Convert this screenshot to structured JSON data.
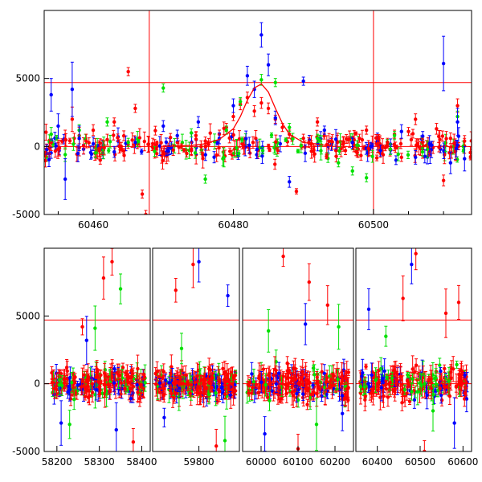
{
  "chart_data": [
    {
      "type": "scatter",
      "panel": "top",
      "title": "",
      "xlabel": "",
      "ylabel": "",
      "xlim": [
        60453,
        60514
      ],
      "ylim": [
        -5000,
        10000
      ],
      "xticks": [
        60460,
        60480,
        60500
      ],
      "yticks": [
        -5000,
        0,
        5000
      ],
      "hlines": [
        0,
        4700
      ],
      "vlines": [
        60468,
        60500
      ],
      "colors": {
        "red": "#ff0000",
        "green": "#00e000",
        "blue": "#0000ff"
      },
      "model_curve": {
        "color": "#ff0000",
        "x": [
          60470,
          60474,
          60476,
          60478,
          60480,
          60481,
          60482,
          60483,
          60484,
          60485,
          60486,
          60487,
          60488,
          60490,
          60494
        ],
        "y": [
          0,
          80,
          200,
          520,
          1300,
          2200,
          3400,
          4300,
          4600,
          4000,
          2800,
          1700,
          900,
          300,
          30
        ]
      },
      "series": [
        {
          "color": "red",
          "points": [
            [
              60454,
              300,
              600
            ],
            [
              60455,
              -200,
              500
            ],
            [
              60456,
              500,
              700
            ],
            [
              60457,
              2000,
              900
            ],
            [
              60458,
              800,
              600
            ],
            [
              60459,
              400,
              500
            ],
            [
              60460,
              1200,
              400
            ],
            [
              60461,
              -1000,
              300
            ],
            [
              60462,
              500,
              400
            ],
            [
              60463,
              1800,
              300
            ],
            [
              60464,
              0,
              300
            ],
            [
              60465,
              5500,
              300
            ],
            [
              60466,
              2800,
              300
            ],
            [
              60467,
              -3500,
              300
            ],
            [
              60467.5,
              -5000,
              300
            ],
            [
              60468.5,
              200,
              400
            ],
            [
              60470,
              -400,
              300
            ],
            [
              60472,
              300,
              300
            ],
            [
              60474,
              -300,
              300
            ],
            [
              60476,
              400,
              300
            ],
            [
              60478,
              900,
              300
            ],
            [
              60479,
              1400,
              300
            ],
            [
              60480,
              2200,
              300
            ],
            [
              60481,
              3100,
              400
            ],
            [
              60482,
              3600,
              400
            ],
            [
              60483,
              2600,
              400
            ],
            [
              60484,
              3200,
              400
            ],
            [
              60485,
              2800,
              400
            ],
            [
              60486,
              2000,
              300
            ],
            [
              60487,
              1400,
              300
            ],
            [
              60488,
              900,
              300
            ],
            [
              60489,
              -3300,
              200
            ],
            [
              60490,
              600,
              300
            ],
            [
              60492,
              1800,
              300
            ],
            [
              60494,
              400,
              300
            ],
            [
              60496,
              -300,
              300
            ],
            [
              60498,
              600,
              300
            ],
            [
              60499,
              1200,
              300
            ],
            [
              60501,
              -500,
              300
            ],
            [
              60502,
              300,
              300
            ],
            [
              60503,
              900,
              300
            ],
            [
              60504,
              -800,
              300
            ],
            [
              60505,
              1100,
              300
            ],
            [
              60506,
              2000,
              400
            ],
            [
              60507,
              300,
              300
            ],
            [
              60508,
              -400,
              300
            ],
            [
              60509,
              1300,
              400
            ],
            [
              60510,
              -2500,
              400
            ],
            [
              60511,
              600,
              400
            ],
            [
              60512,
              3000,
              500
            ],
            [
              60513,
              400,
              400
            ]
          ]
        },
        {
          "color": "green",
          "points": [
            [
              60454,
              900,
              500
            ],
            [
              60456,
              -600,
              500
            ],
            [
              60458,
              1200,
              400
            ],
            [
              60462,
              1800,
              300
            ],
            [
              60465,
              300,
              300
            ],
            [
              60470,
              4300,
              300
            ],
            [
              60474,
              1000,
              300
            ],
            [
              60476,
              -2400,
              300
            ],
            [
              60479,
              1200,
              300
            ],
            [
              60481,
              3300,
              300
            ],
            [
              60484,
              4900,
              400
            ],
            [
              60486,
              4700,
              300
            ],
            [
              60488,
              1400,
              300
            ],
            [
              60492,
              600,
              300
            ],
            [
              60495,
              -1200,
              300
            ],
            [
              60497,
              -1800,
              300
            ],
            [
              60499,
              -2300,
              300
            ],
            [
              60503,
              800,
              300
            ],
            [
              60507,
              -400,
              300
            ],
            [
              60512,
              2200,
              400
            ]
          ]
        },
        {
          "color": "blue",
          "points": [
            [
              60454,
              3800,
              1200
            ],
            [
              60455,
              1500,
              900
            ],
            [
              60456,
              -2400,
              1500
            ],
            [
              60457,
              4200,
              2000
            ],
            [
              60458,
              600,
              900
            ],
            [
              60460,
              200,
              500
            ],
            [
              60463,
              -400,
              400
            ],
            [
              60466,
              300,
              400
            ],
            [
              60470,
              1500,
              400
            ],
            [
              60472,
              800,
              400
            ],
            [
              60475,
              1800,
              400
            ],
            [
              60478,
              600,
              400
            ],
            [
              60480,
              3000,
              500
            ],
            [
              60482,
              5200,
              700
            ],
            [
              60483,
              4200,
              600
            ],
            [
              60484,
              8200,
              900
            ],
            [
              60485,
              6000,
              800
            ],
            [
              60486,
              2100,
              500
            ],
            [
              60488,
              -2600,
              400
            ],
            [
              60490,
              4800,
              300
            ],
            [
              60493,
              1200,
              300
            ],
            [
              60497,
              300,
              300
            ],
            [
              60501,
              -300,
              400
            ],
            [
              60504,
              1100,
              500
            ],
            [
              60506,
              -800,
              500
            ],
            [
              60508,
              200,
              600
            ],
            [
              60510,
              6100,
              2000
            ],
            [
              60511,
              -1200,
              800
            ],
            [
              60512,
              1800,
              1000
            ],
            [
              60513,
              -900,
              900
            ]
          ]
        }
      ]
    },
    {
      "type": "scatter",
      "panel": "bottom",
      "title": "",
      "xlabel": "",
      "ylabel": "",
      "broken_axis": true,
      "segments": [
        {
          "xlim": [
            58170,
            58420
          ],
          "xticks": [
            58200,
            58300,
            58400
          ]
        },
        {
          "xlim": [
            59720,
            59870
          ],
          "xticks": [
            59800
          ]
        },
        {
          "xlim": [
            59950,
            60250
          ],
          "xticks": [
            60000,
            60100,
            60200
          ]
        },
        {
          "xlim": [
            60350,
            60620
          ],
          "xticks": [
            60400,
            60500,
            60600
          ]
        }
      ],
      "ylim": [
        -5000,
        10000
      ],
      "yticks": [
        -5000,
        0,
        5000
      ],
      "hlines": [
        0,
        4700
      ],
      "colors": {
        "red": "#ff0000",
        "green": "#00e000",
        "blue": "#0000ff"
      },
      "bands": [
        {
          "segment": 0,
          "x": [
            58180,
            58410
          ],
          "spread": 700
        },
        {
          "segment": 1,
          "x": [
            59725,
            59865
          ],
          "spread": 700
        },
        {
          "segment": 2,
          "x": [
            59960,
            60240
          ],
          "spread": 800
        },
        {
          "segment": 3,
          "x": [
            60360,
            60610
          ],
          "spread": 800
        }
      ],
      "outliers": [
        {
          "color": "red",
          "points": [
            [
              58260,
              4200
            ],
            [
              58310,
              7800
            ],
            [
              58330,
              9000
            ],
            [
              58380,
              -4300
            ],
            [
              59760,
              6900
            ],
            [
              59790,
              8800
            ],
            [
              59830,
              -4600
            ],
            [
              60060,
              9400
            ],
            [
              60100,
              -4800
            ],
            [
              60130,
              7500
            ],
            [
              60180,
              5800
            ],
            [
              60460,
              6300
            ],
            [
              60490,
              9600
            ],
            [
              60510,
              -5000
            ],
            [
              60560,
              5200
            ],
            [
              60590,
              6000
            ]
          ]
        },
        {
          "color": "green",
          "points": [
            [
              58230,
              -3000
            ],
            [
              58290,
              4100
            ],
            [
              58350,
              7000
            ],
            [
              59770,
              2600
            ],
            [
              59845,
              -4200
            ],
            [
              60020,
              3900
            ],
            [
              60150,
              -3000
            ],
            [
              60210,
              4200
            ],
            [
              60420,
              3500
            ],
            [
              60530,
              -2000
            ]
          ]
        },
        {
          "color": "blue",
          "points": [
            [
              58210,
              -2900
            ],
            [
              58270,
              3200
            ],
            [
              58340,
              -3400
            ],
            [
              59740,
              -2500
            ],
            [
              59800,
              9000
            ],
            [
              59850,
              6500
            ],
            [
              60010,
              -3700
            ],
            [
              60120,
              4400
            ],
            [
              60220,
              -2200
            ],
            [
              60380,
              5500
            ],
            [
              60480,
              8800
            ],
            [
              60580,
              -2900
            ]
          ]
        }
      ]
    }
  ]
}
